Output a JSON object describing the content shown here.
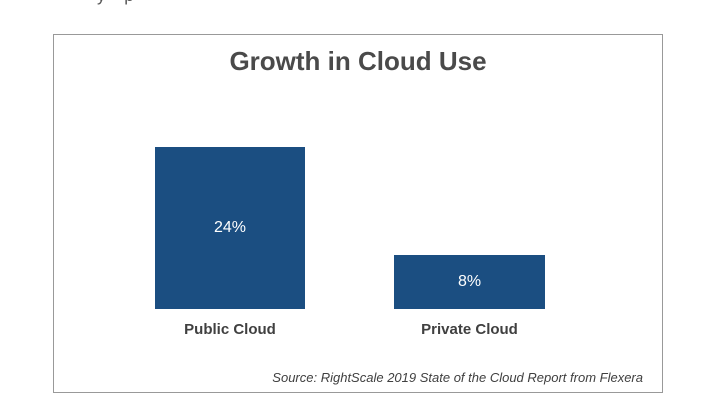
{
  "page": {
    "cropped_text_fragment": "y p"
  },
  "chart": {
    "source": "Source: RightScale 2019 State of the Cloud Report from Flexera"
  },
  "chart_data": {
    "type": "bar",
    "title": "Growth in Cloud Use",
    "categories": [
      "Public Cloud",
      "Private Cloud"
    ],
    "values": [
      24,
      8
    ],
    "value_labels": [
      "24%",
      "8%"
    ],
    "unit": "%",
    "xlabel": "",
    "ylabel": "",
    "ylim": [
      0,
      27
    ],
    "grid": false,
    "legend": "none",
    "bar_color": "#1B4E81",
    "value_label_color": "#FFFFFF",
    "annotations": [
      "Source: RightScale 2019 State of the Cloud Report from Flexera"
    ]
  },
  "colors": {
    "bar": "#1B4E81",
    "title_text": "#4A4A4A",
    "category_text": "#404040",
    "source_text": "#404040",
    "border": "#999999",
    "background": "#FFFFFF"
  }
}
